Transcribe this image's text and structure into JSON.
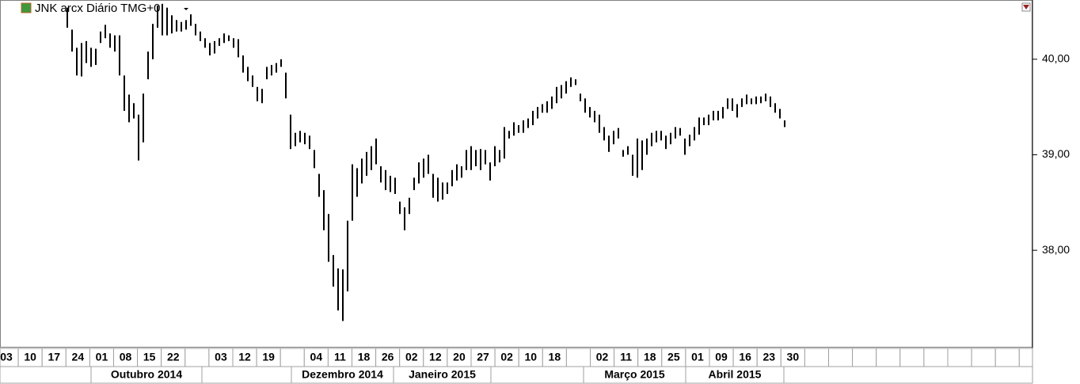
{
  "chart_data": {
    "type": "hl",
    "title": "JNK arcx Diário TMG+0",
    "high": [
      40.54,
      40.31,
      40.12,
      40.17,
      40.19,
      40.12,
      40.11,
      40.29,
      40.36,
      40.27,
      40.25,
      40.25,
      39.83,
      39.63,
      39.54,
      39.42,
      39.64,
      40.08,
      40.37,
      40.56,
      40.58,
      40.54,
      40.46,
      40.41,
      40.39,
      40.41,
      40.47,
      40.37,
      40.29,
      40.22,
      40.17,
      40.19,
      40.22,
      40.27,
      40.25,
      40.22,
      40.21,
      40.04,
      39.92,
      39.83,
      39.71,
      39.69,
      39.92,
      39.94,
      39.96,
      40.0,
      39.86,
      39.42,
      39.23,
      39.25,
      39.23,
      39.2,
      39.05,
      38.8,
      38.63,
      38.38,
      37.95,
      37.81,
      37.8,
      38.31,
      38.9,
      38.86,
      38.96,
      39.03,
      39.09,
      39.17,
      38.88,
      38.84,
      38.78,
      38.76,
      38.51,
      38.45,
      38.55,
      38.76,
      38.92,
      38.96,
      39.0,
      38.8,
      38.76,
      38.71,
      38.71,
      38.84,
      38.9,
      38.88,
      39.05,
      39.09,
      39.05,
      39.06,
      39.05,
      38.92,
      39.09,
      39.05,
      39.29,
      39.25,
      39.34,
      39.31,
      39.36,
      39.38,
      39.46,
      39.5,
      39.53,
      39.56,
      39.61,
      39.71,
      39.73,
      39.77,
      39.81,
      39.79,
      39.64,
      39.59,
      39.5,
      39.46,
      39.42,
      39.29,
      39.2,
      39.25,
      39.28,
      39.05,
      39.09,
      39.0,
      39.17,
      39.15,
      39.17,
      39.23,
      39.25,
      39.25,
      39.2,
      39.23,
      39.29,
      39.28,
      39.17,
      39.21,
      39.29,
      39.39,
      39.39,
      39.42,
      39.46,
      39.46,
      39.5,
      39.59,
      39.59,
      39.53,
      39.59,
      39.63,
      39.59,
      39.61,
      39.61,
      39.64,
      39.61,
      39.54,
      39.48,
      39.36
    ],
    "low": [
      40.33,
      40.08,
      39.83,
      39.82,
      39.96,
      39.92,
      39.94,
      40.17,
      40.22,
      40.12,
      40.08,
      39.83,
      39.46,
      39.34,
      39.38,
      38.94,
      39.13,
      39.79,
      40.0,
      40.33,
      40.25,
      40.25,
      40.27,
      40.29,
      40.29,
      40.31,
      40.35,
      40.25,
      40.19,
      40.12,
      40.04,
      40.06,
      40.14,
      40.17,
      40.19,
      40.12,
      40.02,
      39.86,
      39.77,
      39.71,
      39.56,
      39.54,
      39.79,
      39.83,
      39.86,
      39.92,
      39.59,
      39.06,
      39.09,
      39.13,
      39.11,
      39.06,
      38.86,
      38.56,
      38.21,
      37.88,
      37.62,
      37.37,
      37.26,
      37.57,
      38.31,
      38.56,
      38.7,
      38.78,
      38.84,
      38.9,
      38.71,
      38.63,
      38.61,
      38.59,
      38.38,
      38.21,
      38.38,
      38.63,
      38.7,
      38.76,
      38.8,
      38.55,
      38.51,
      38.53,
      38.59,
      38.67,
      38.73,
      38.76,
      38.84,
      38.84,
      38.88,
      38.84,
      38.9,
      38.73,
      38.88,
      38.92,
      38.96,
      39.17,
      39.2,
      39.23,
      39.23,
      39.28,
      39.31,
      39.38,
      39.44,
      39.44,
      39.48,
      39.54,
      39.59,
      39.64,
      39.71,
      39.73,
      39.56,
      39.44,
      39.39,
      39.34,
      39.23,
      39.15,
      39.03,
      39.11,
      39.17,
      38.98,
      39.0,
      38.78,
      38.76,
      38.84,
      39.0,
      39.09,
      39.13,
      39.15,
      39.06,
      39.11,
      39.17,
      39.2,
      39.0,
      39.09,
      39.15,
      39.21,
      39.31,
      39.31,
      39.36,
      39.36,
      39.38,
      39.48,
      39.46,
      39.39,
      39.5,
      39.53,
      39.53,
      39.53,
      39.54,
      39.56,
      39.5,
      39.44,
      39.38,
      39.29
    ],
    "color": "#000000",
    "ylim": [
      36.99,
      40.62
    ],
    "yticks": [
      {
        "value": 40,
        "label": "40,00"
      },
      {
        "value": 39,
        "label": "39,00"
      },
      {
        "value": 38,
        "label": "38,00"
      }
    ],
    "date_labels": [
      "03",
      "10",
      "17",
      "24",
      "01",
      "08",
      "15",
      "22",
      null,
      "03",
      "12",
      "19",
      null,
      "04",
      "11",
      "18",
      "26",
      "02",
      "12",
      "20",
      "27",
      "02",
      "10",
      "18",
      null,
      "02",
      "11",
      "18",
      "25",
      "01",
      "09",
      "16",
      "23",
      "30"
    ],
    "month_labels": [
      null,
      "Outubro 2014",
      null,
      "Dezembro 2014",
      "Janeiro 2015",
      null,
      "Março 2015",
      "Abril 2015",
      null
    ]
  }
}
